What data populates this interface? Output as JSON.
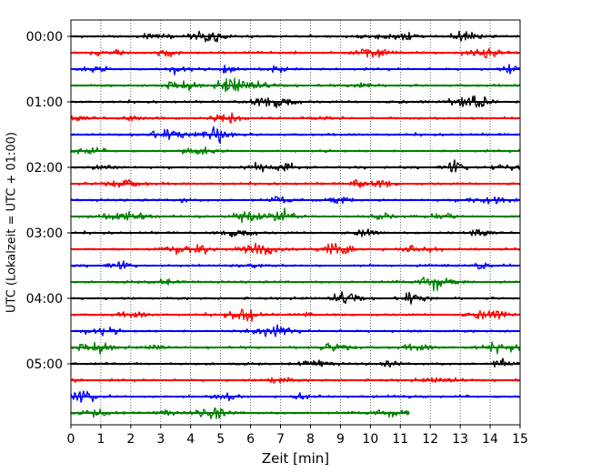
{
  "chart_data": {
    "type": "line",
    "title": "",
    "xlabel": "Zeit  [min]",
    "ylabel": "UTC (Lokalzeit = UTC + 01:00)",
    "xlim": [
      0,
      15
    ],
    "x_ticks": [
      "0",
      "1",
      "2",
      "3",
      "4",
      "5",
      "6",
      "7",
      "8",
      "9",
      "10",
      "11",
      "12",
      "13",
      "14",
      "15"
    ],
    "y_tick_labels": [
      "00:00",
      "01:00",
      "02:00",
      "03:00",
      "04:00",
      "05:00"
    ],
    "trace_interval_min": 15,
    "trace_count": 24,
    "last_trace_end_min": 11.3,
    "grid": "vertical dotted at each minute",
    "colors": [
      "#000000",
      "#ff0000",
      "#0000ff",
      "#008000"
    ]
  }
}
